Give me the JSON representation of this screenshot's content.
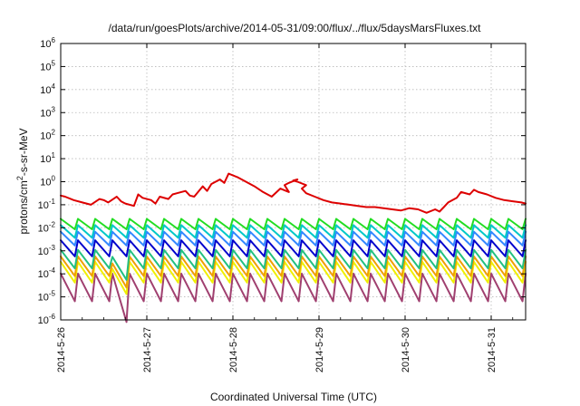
{
  "chart_data": {
    "type": "line",
    "title": "/data/run/goesPlots/archive/2014-05-31/09:00/flux/../flux/5daysMarsFluxes.txt",
    "xlabel": "Coordinated Universal Time (UTC)",
    "ylabel_main": "protons/cm",
    "ylabel_sup": "2",
    "ylabel_rest": "-s-sr-MeV",
    "y_scale": "log",
    "ylim_exp": [
      -6,
      6
    ],
    "y_ticks": [
      {
        "base": "10",
        "exp": "-6"
      },
      {
        "base": "10",
        "exp": "-5"
      },
      {
        "base": "10",
        "exp": "-4"
      },
      {
        "base": "10",
        "exp": "-3"
      },
      {
        "base": "10",
        "exp": "-2"
      },
      {
        "base": "10",
        "exp": "-1"
      },
      {
        "base": "10",
        "exp": "0"
      },
      {
        "base": "10",
        "exp": "1"
      },
      {
        "base": "10",
        "exp": "2"
      },
      {
        "base": "10",
        "exp": "3"
      },
      {
        "base": "10",
        "exp": "4"
      },
      {
        "base": "10",
        "exp": "5"
      },
      {
        "base": "10",
        "exp": "6"
      }
    ],
    "xlim": [
      0,
      5.4
    ],
    "x_ticks": [
      "2014-5-26",
      "2014-5-27",
      "2014-5-28",
      "2014-5-29",
      "2014-5-30",
      "2014-5-31"
    ],
    "x_tick_days": [
      0,
      1,
      2,
      3,
      4,
      5
    ],
    "grid": true,
    "legend": "none",
    "series": [
      {
        "color": "#dd0000",
        "style": "red",
        "x": [
          0,
          0.05,
          0.15,
          0.25,
          0.35,
          0.45,
          0.5,
          0.55,
          0.65,
          0.7,
          0.75,
          0.85,
          0.9,
          0.95,
          1.05,
          1.1,
          1.15,
          1.25,
          1.3,
          1.35,
          1.45,
          1.5,
          1.55,
          1.65,
          1.7,
          1.75,
          1.85,
          1.9,
          1.95,
          2.05,
          2.15,
          2.25,
          2.35,
          2.45,
          2.55,
          2.65,
          2.6,
          2.65,
          2.75,
          2.7,
          2.75,
          2.85,
          2.8,
          2.85,
          2.95,
          3.05,
          3.15,
          3.25,
          3.35,
          3.45,
          3.55,
          3.65,
          3.75,
          3.85,
          3.95,
          4.05,
          4.15,
          4.25,
          4.35,
          4.4,
          4.45,
          4.5,
          4.6,
          4.65,
          4.75,
          4.8,
          4.85,
          4.95,
          5.05,
          5.15,
          5.25,
          5.35,
          5.4
        ],
        "y": [
          -0.6,
          -0.65,
          -0.8,
          -0.9,
          -1.0,
          -0.75,
          -0.8,
          -0.9,
          -0.65,
          -0.85,
          -0.95,
          -1.05,
          -0.55,
          -0.7,
          -0.8,
          -0.95,
          -0.65,
          -0.75,
          -0.55,
          -0.5,
          -0.4,
          -0.6,
          -0.65,
          -0.2,
          -0.4,
          -0.1,
          0.1,
          -0.05,
          0.35,
          0.2,
          0.0,
          -0.2,
          -0.45,
          -0.65,
          -0.3,
          -0.45,
          -0.15,
          -0.05,
          0.1,
          0.05,
          0.0,
          -0.15,
          -0.3,
          -0.5,
          -0.65,
          -0.8,
          -0.9,
          -0.95,
          -1.0,
          -1.05,
          -1.1,
          -1.1,
          -1.15,
          -1.2,
          -1.25,
          -1.15,
          -1.2,
          -1.35,
          -1.2,
          -1.3,
          -1.1,
          -0.9,
          -0.7,
          -0.45,
          -0.55,
          -0.35,
          -0.45,
          -0.55,
          -0.7,
          -0.8,
          -0.85,
          -0.9,
          -0.95
        ]
      },
      {
        "color": "#22dd22",
        "style": "green",
        "base": -1.75,
        "amp": 0.45,
        "period": 0.2
      },
      {
        "color": "#00c8c8",
        "style": "cyan",
        "base": -2.05,
        "amp": 0.55,
        "period": 0.2
      },
      {
        "color": "#3388ff",
        "style": "lightblue",
        "base": -2.35,
        "amp": 0.6,
        "period": 0.2
      },
      {
        "color": "#0000cc",
        "style": "blue",
        "base": -2.75,
        "amp": 0.7,
        "period": 0.2
      },
      {
        "color": "#22c080",
        "style": "teal",
        "base": -3.2,
        "amp": 0.8,
        "period": 0.2
      },
      {
        "color": "#f0f000",
        "style": "yellow",
        "base": -3.75,
        "amp": 0.9,
        "period": 0.2
      },
      {
        "color": "#f0a000",
        "style": "orange",
        "base": -3.5,
        "amp": 0.85,
        "period": 0.2
      },
      {
        "color": "#a04070",
        "style": "purple",
        "base": -4.35,
        "amp": 1.2,
        "period": 0.2
      }
    ]
  }
}
